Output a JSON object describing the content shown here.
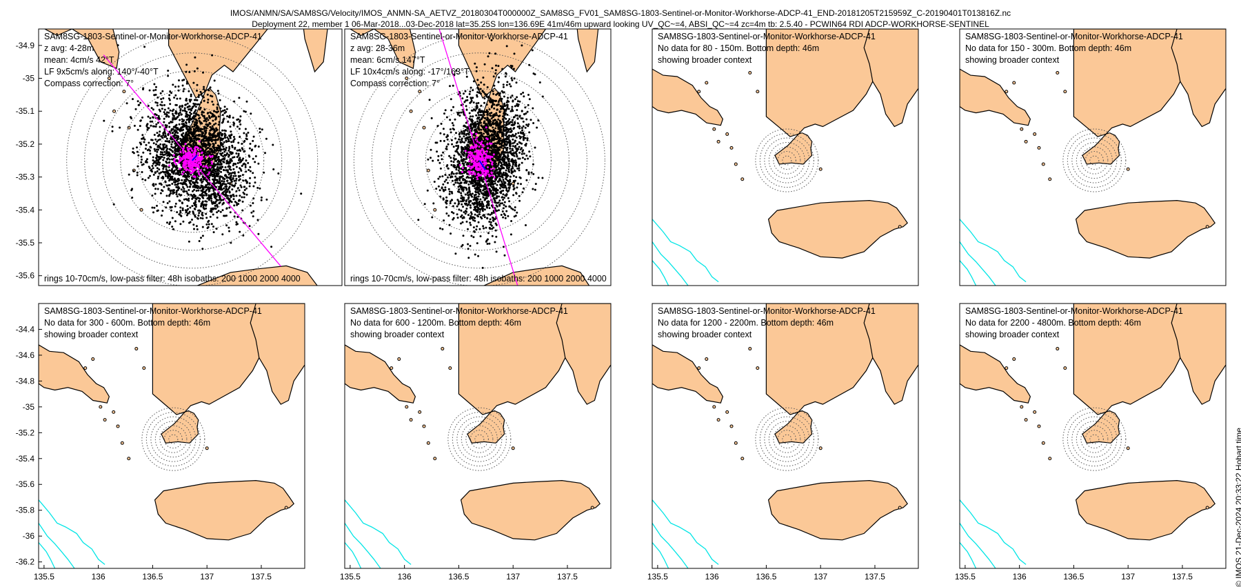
{
  "figure": {
    "title_line1": "IMOS/ANMN/SA/SAM8SG/Velocity/IMOS_ANMN-SA_AETVZ_20180304T000000Z_SAM8SG_FV01_SAM8SG-1803-Sentinel-or-Monitor-Workhorse-ADCP-41_END-20181205T215959Z_C-20190401T013816Z.nc",
    "title_line2": "Deployment 22, member 1 06-Mar-2018...03-Dec-2018 lat=35.25S lon=136.69E 41m/46m upward looking UV_QC~=4, ABSI_QC~=4 zc=4m tb: 2.5.40 - PCWIN64 RDI ADCP-WORKHORSE-SENTINEL",
    "credit": "© IMOS 21-Dec-2024 20:33:22 Hobart time"
  },
  "colors": {
    "land": "#fbc897",
    "isobath": "#00e5e5",
    "scatter": "#000000",
    "lowpass": "#ff00ff",
    "rings": "#555555"
  },
  "chart_data": [
    {
      "type": "scatter",
      "title": "SAM8SG-1803-Sentinel-or-Monitor-Workhorse-ADCP-41",
      "lines": [
        "z avg: 4-28m",
        "mean: 4cm/s 42°T",
        "LF 9x5cm/s along: 140°/-40°T",
        "Compass correction: 7°"
      ],
      "footer": "rings 10-70cm/s, low-pass filter: 48h isobaths: 200 1000 2000 4000",
      "xlim": [
        135.45,
        137.9
      ],
      "ylim": [
        -35.63,
        -34.85
      ],
      "yticks": [
        -34.9,
        -35,
        -35.1,
        -35.2,
        -35.3,
        -35.4,
        -35.5,
        -35.6
      ],
      "ytick_labels": [
        "-34.9",
        "-35",
        "-35.1",
        "-35.2",
        "-35.3",
        "-35.4",
        "-35.5",
        "-35.6"
      ],
      "center": [
        136.69,
        -35.25
      ],
      "has_data": true,
      "mean_speed_cm_s": 4,
      "mean_dir_deg": 42,
      "lf_major_cm_s": 9,
      "lf_minor_cm_s": 5,
      "along_dir_deg": 140
    },
    {
      "type": "scatter",
      "title": "SAM8SG-1803-Sentinel-or-Monitor-Workhorse-ADCP-41",
      "lines": [
        "z avg: 28-36m",
        "mean: 6cm/s 147°T",
        "LF 10x4cm/s along: -17°/163°T",
        "Compass correction: 7°"
      ],
      "footer": "rings 10-70cm/s, low-pass filter: 48h isobaths: 200 1000 2000 4000",
      "xlim": [
        135.45,
        137.9
      ],
      "ylim": [
        -35.63,
        -34.85
      ],
      "center": [
        136.69,
        -35.25
      ],
      "has_data": true,
      "mean_speed_cm_s": 6,
      "mean_dir_deg": 147,
      "lf_major_cm_s": 10,
      "lf_minor_cm_s": 4,
      "along_dir_deg": -17
    },
    {
      "type": "scatter",
      "title": "SAM8SG-1803-Sentinel-or-Monitor-Workhorse-ADCP-41",
      "lines": [
        "No data for 80 - 150m. Bottom depth: 46m",
        "showing broader context"
      ],
      "xlim": [
        135.45,
        137.9
      ],
      "ylim": [
        -36.25,
        -34.2
      ],
      "center": [
        136.69,
        -35.25
      ],
      "has_data": false
    },
    {
      "type": "scatter",
      "title": "SAM8SG-1803-Sentinel-or-Monitor-Workhorse-ADCP-41",
      "lines": [
        "No data for 150 - 300m. Bottom depth: 46m",
        "showing broader context"
      ],
      "xlim": [
        135.45,
        137.9
      ],
      "ylim": [
        -36.25,
        -34.2
      ],
      "center": [
        136.69,
        -35.25
      ],
      "has_data": false
    },
    {
      "type": "scatter",
      "title": "SAM8SG-1803-Sentinel-or-Monitor-Workhorse-ADCP-41",
      "lines": [
        "No data for 300 - 600m. Bottom depth: 46m",
        "showing broader context"
      ],
      "xlim": [
        135.45,
        137.9
      ],
      "ylim": [
        -36.25,
        -34.2
      ],
      "yticks": [
        -34.4,
        -34.6,
        -34.8,
        -35,
        -35.2,
        -35.4,
        -35.6,
        -35.8,
        -36,
        -36.2
      ],
      "ytick_labels": [
        "-34.4",
        "-34.6",
        "-34.8",
        "-35",
        "-35.2",
        "-35.4",
        "-35.6",
        "-35.8",
        "-36",
        "-36.2"
      ],
      "xticks": [
        135.5,
        136,
        136.5,
        137,
        137.5
      ],
      "xtick_labels": [
        "135.5",
        "136",
        "136.5",
        "137",
        "137.5"
      ],
      "center": [
        136.69,
        -35.25
      ],
      "has_data": false
    },
    {
      "type": "scatter",
      "title": "SAM8SG-1803-Sentinel-or-Monitor-Workhorse-ADCP-41",
      "lines": [
        "No data for 600 - 1200m. Bottom depth: 46m",
        "showing broader context"
      ],
      "xlim": [
        135.45,
        137.9
      ],
      "ylim": [
        -36.25,
        -34.2
      ],
      "xticks": [
        135.5,
        136,
        136.5,
        137,
        137.5
      ],
      "xtick_labels": [
        "135.5",
        "136",
        "136.5",
        "137",
        "137.5"
      ],
      "center": [
        136.69,
        -35.25
      ],
      "has_data": false
    },
    {
      "type": "scatter",
      "title": "SAM8SG-1803-Sentinel-or-Monitor-Workhorse-ADCP-41",
      "lines": [
        "No data for 1200 - 2200m. Bottom depth: 46m",
        "showing broader context"
      ],
      "xlim": [
        135.45,
        137.9
      ],
      "ylim": [
        -36.25,
        -34.2
      ],
      "xticks": [
        135.5,
        136,
        136.5,
        137,
        137.5
      ],
      "xtick_labels": [
        "135.5",
        "136",
        "136.5",
        "137",
        "137.5"
      ],
      "center": [
        136.69,
        -35.25
      ],
      "has_data": false
    },
    {
      "type": "scatter",
      "title": "SAM8SG-1803-Sentinel-or-Monitor-Workhorse-ADCP-41",
      "lines": [
        "No data for 2200 - 4800m. Bottom depth: 46m",
        "showing broader context"
      ],
      "xlim": [
        135.45,
        137.9
      ],
      "ylim": [
        -36.25,
        -34.2
      ],
      "xticks": [
        135.5,
        136,
        136.5,
        137,
        137.5
      ],
      "xtick_labels": [
        "135.5",
        "136",
        "136.5",
        "137",
        "137.5"
      ],
      "center": [
        136.69,
        -35.25
      ],
      "has_data": false
    }
  ]
}
